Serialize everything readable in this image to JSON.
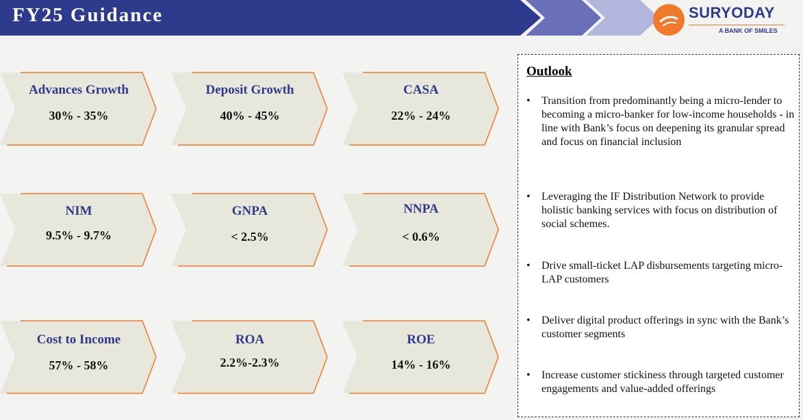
{
  "header": {
    "title": "FY25 Guidance",
    "logo_name": "SURYODAY",
    "logo_tagline": "A BANK OF SMILES",
    "colors": {
      "bar": "#2e3a8c",
      "chevron_mid": "#6a70b8",
      "chevron_light": "#b3b6dc",
      "orange": "#f0792b"
    }
  },
  "cards": [
    {
      "label": "Advances Growth",
      "value": "30% - 35%"
    },
    {
      "label": "Deposit Growth",
      "value": "40% - 45%"
    },
    {
      "label": "CASA",
      "value": "22% - 24%"
    },
    {
      "label": "NIM",
      "value": "9.5% - 9.7%"
    },
    {
      "label": "GNPA",
      "value": "< 2.5%"
    },
    {
      "label": "NNPA",
      "value": "< 0.6%"
    },
    {
      "label": "Cost to Income",
      "value": "57% - 58%"
    },
    {
      "label": "ROA",
      "value": "2.2%-2.3%"
    },
    {
      "label": "ROE",
      "value": "14% - 16%"
    }
  ],
  "outlook": {
    "title": "Outlook",
    "bullet_char": "•",
    "items": [
      "Transition from predominantly being a micro-lender to becoming a micro-banker for low-income households  - in line with Bank’s focus on deepening its granular spread and focus on financial inclusion",
      "Leveraging the IF Distribution Network to provide holistic banking services with focus on distribution of social schemes.",
      "Drive small-ticket LAP disbursements targeting micro-LAP customers",
      "Deliver digital product offerings in sync with the Bank’s customer segments",
      "Increase customer stickiness through targeted customer engagements and value-added offerings"
    ]
  }
}
